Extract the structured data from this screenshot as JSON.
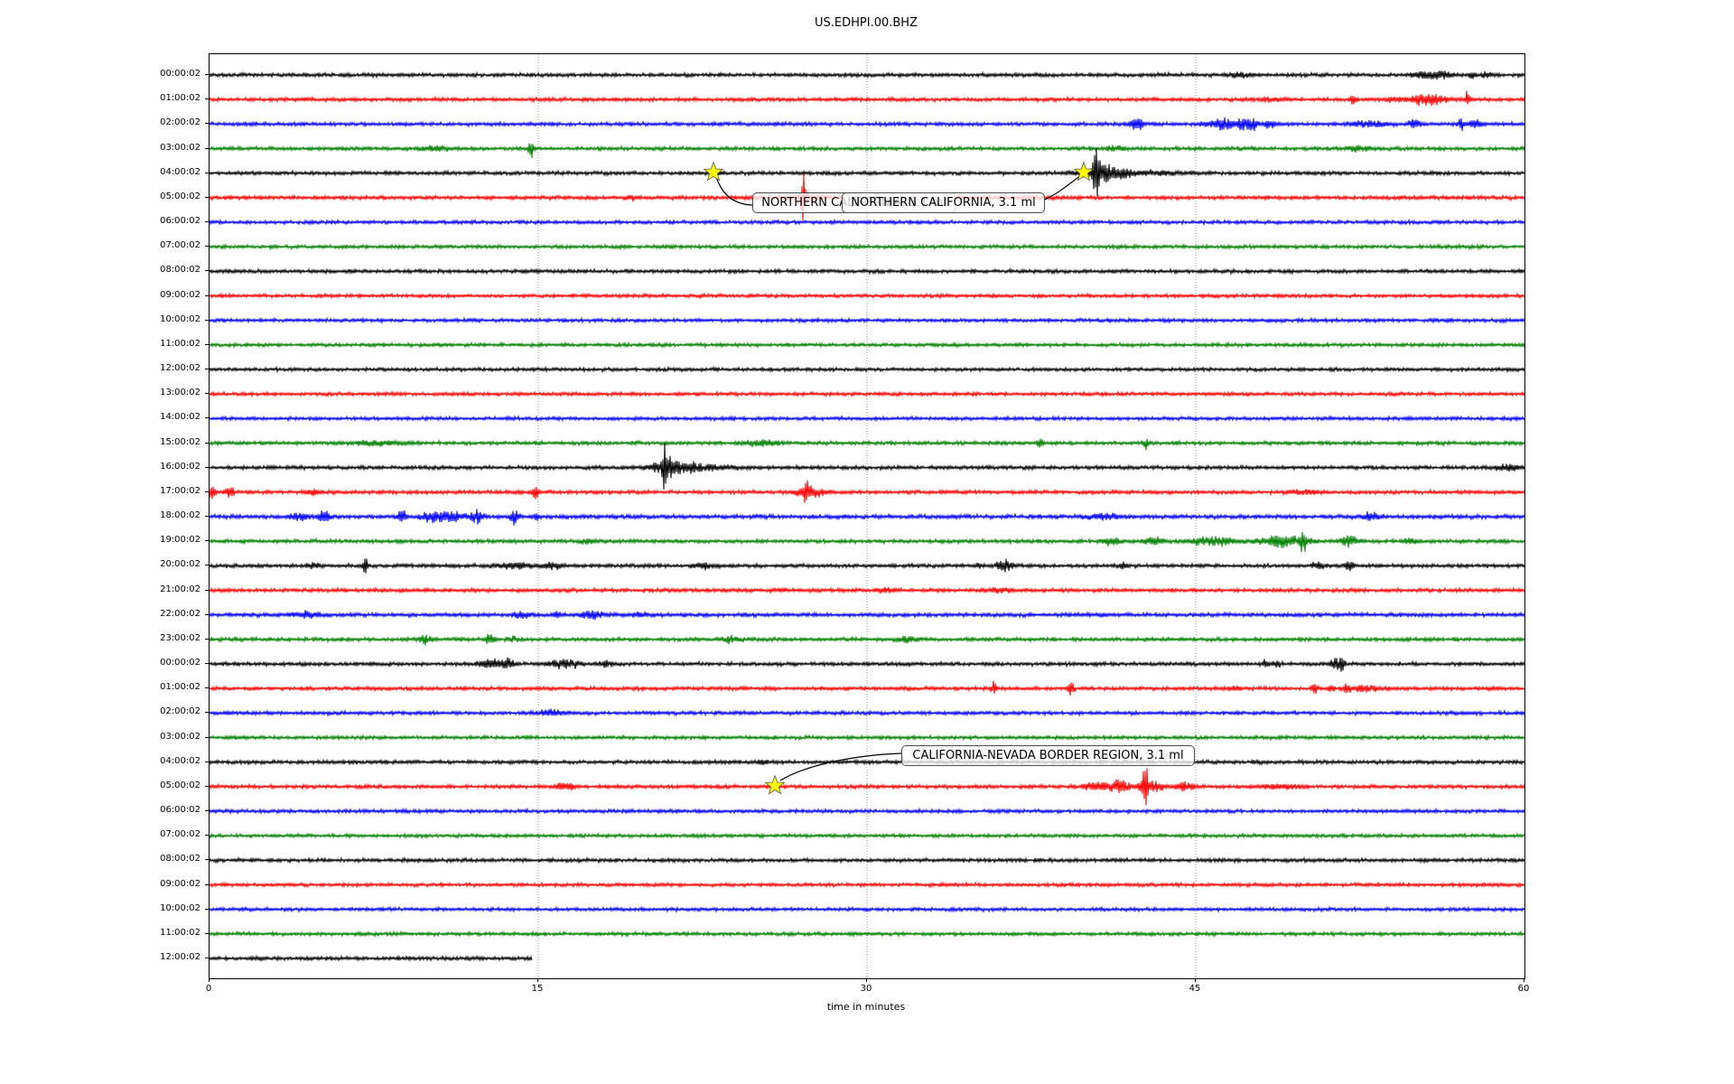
{
  "title": "US.EDHPI.00.BHZ",
  "xlabel": "time in minutes",
  "annotations": [
    {
      "text": "NORTHERN CALIFORNIA, 3.1 ml"
    },
    {
      "text": "NORTHERN CALIFORNIA, 3.1 ml"
    },
    {
      "text": "CALIFORNIA-NEVADA BORDER REGION, 3.1 ml"
    }
  ],
  "chart_data": {
    "type": "line",
    "kind": "helicorder-dayplot",
    "title": "US.EDHPI.00.BHZ",
    "xlabel": "time in minutes",
    "x_range_minutes": [
      0,
      60
    ],
    "x_ticks": [
      0,
      15,
      30,
      45,
      60
    ],
    "grid_minutes": [
      15,
      30,
      45
    ],
    "grid_style": "dotted",
    "trace_color_cycle": [
      "#000000",
      "#ff0000",
      "#0000ff",
      "#008000"
    ],
    "star_color": "#ffff00",
    "annotated_events": [
      {
        "label": "NORTHERN CALIFORNIA, 3.1 ml",
        "trace": "04:00:02",
        "minute": 23.0
      },
      {
        "label": "NORTHERN CALIFORNIA, 3.1 ml",
        "trace": "04:00:02",
        "minute": 39.9
      },
      {
        "label": "CALIFORNIA-NEVADA BORDER REGION, 3.1 ml",
        "trace": "05:00:02 (day 2)",
        "minute": 25.8
      }
    ],
    "traces": [
      {
        "label": "00:00:02",
        "color": "#000000",
        "amp": 1.8,
        "events": [
          [
            47.0,
            0.4,
            2.5
          ],
          [
            55.2,
            0.3,
            3
          ],
          [
            56.1,
            0.4,
            5
          ],
          [
            57.6,
            0.08,
            7
          ],
          [
            58.3,
            0.2,
            3
          ]
        ]
      },
      {
        "label": "01:00:02",
        "color": "#ff0000",
        "amp": 1.8,
        "events": [
          [
            48.5,
            0.3,
            2
          ],
          [
            52.2,
            0.1,
            6
          ],
          [
            53.9,
            0.2,
            3
          ],
          [
            55.6,
            0.6,
            6
          ],
          [
            57.4,
            0.08,
            10
          ]
        ]
      },
      {
        "label": "02:00:02",
        "color": "#0000ff",
        "amp": 1.8,
        "events": [
          [
            42.3,
            0.2,
            10
          ],
          [
            46.3,
            0.5,
            7
          ],
          [
            47.4,
            0.3,
            8
          ],
          [
            48.4,
            0.15,
            5
          ],
          [
            52.9,
            0.5,
            4
          ],
          [
            55.0,
            0.2,
            5
          ],
          [
            57.1,
            0.08,
            9
          ],
          [
            57.7,
            0.2,
            4
          ]
        ]
      },
      {
        "label": "03:00:02",
        "color": "#008000",
        "amp": 1.8,
        "events": [
          [
            10.4,
            0.4,
            3
          ],
          [
            14.7,
            0.1,
            9
          ],
          [
            41.4,
            0.3,
            3
          ],
          [
            52.3,
            0.4,
            3
          ]
        ]
      },
      {
        "label": "04:00:02",
        "color": "#000000",
        "amp": 1.8,
        "events": [
          [
            23.0,
            0.2,
            3
          ],
          [
            40.45,
            0.1,
            30
          ],
          [
            40.7,
            0.6,
            9
          ],
          [
            41.8,
            1.5,
            2.5
          ]
        ]
      },
      {
        "label": "05:00:02",
        "color": "#ff0000",
        "amp": 1.8,
        "events": [
          [
            19.2,
            0.15,
            3
          ],
          [
            27.1,
            0.08,
            26
          ],
          [
            27.3,
            0.5,
            4
          ]
        ]
      },
      {
        "label": "06:00:02",
        "color": "#0000ff",
        "amp": 1.7,
        "events": []
      },
      {
        "label": "07:00:02",
        "color": "#008000",
        "amp": 1.7,
        "events": []
      },
      {
        "label": "08:00:02",
        "color": "#000000",
        "amp": 1.8,
        "events": []
      },
      {
        "label": "09:00:02",
        "color": "#ff0000",
        "amp": 1.7,
        "events": []
      },
      {
        "label": "10:00:02",
        "color": "#0000ff",
        "amp": 1.7,
        "events": []
      },
      {
        "label": "11:00:02",
        "color": "#008000",
        "amp": 1.7,
        "events": []
      },
      {
        "label": "12:00:02",
        "color": "#000000",
        "amp": 1.7,
        "events": []
      },
      {
        "label": "13:00:02",
        "color": "#ff0000",
        "amp": 1.7,
        "events": []
      },
      {
        "label": "14:00:02",
        "color": "#0000ff",
        "amp": 1.7,
        "events": []
      },
      {
        "label": "15:00:02",
        "color": "#008000",
        "amp": 1.8,
        "events": [
          [
            7.6,
            0.8,
            2.5
          ],
          [
            25.3,
            0.6,
            3
          ],
          [
            37.9,
            0.1,
            6
          ],
          [
            42.7,
            0.1,
            6
          ]
        ]
      },
      {
        "label": "16:00:02",
        "color": "#000000",
        "amp": 1.8,
        "events": [
          [
            20.8,
            0.08,
            25
          ],
          [
            21.1,
            0.6,
            8
          ],
          [
            22.3,
            1.2,
            3
          ],
          [
            59.2,
            0.4,
            4
          ]
        ]
      },
      {
        "label": "17:00:02",
        "color": "#ff0000",
        "amp": 1.8,
        "events": [
          [
            0.15,
            0.1,
            9
          ],
          [
            0.9,
            0.15,
            6
          ],
          [
            4.7,
            0.2,
            3
          ],
          [
            14.9,
            0.1,
            7
          ],
          [
            27.2,
            0.08,
            11
          ],
          [
            27.4,
            0.4,
            7
          ],
          [
            50.0,
            0.5,
            2.5
          ]
        ]
      },
      {
        "label": "18:00:02",
        "color": "#0000ff",
        "amp": 2.0,
        "events": [
          [
            4.1,
            0.3,
            4
          ],
          [
            5.2,
            0.2,
            6
          ],
          [
            8.75,
            0.15,
            8
          ],
          [
            10.1,
            0.3,
            6
          ],
          [
            11.0,
            0.4,
            6
          ],
          [
            12.2,
            0.2,
            7
          ],
          [
            13.9,
            0.15,
            8
          ],
          [
            14.9,
            0.1,
            5
          ],
          [
            40.7,
            0.5,
            3
          ],
          [
            53.0,
            0.3,
            4
          ]
        ]
      },
      {
        "label": "19:00:02",
        "color": "#008000",
        "amp": 1.8,
        "events": [
          [
            17.3,
            0.2,
            3
          ],
          [
            41.1,
            0.3,
            4
          ],
          [
            43.1,
            0.3,
            5
          ],
          [
            45.3,
            0.4,
            4
          ],
          [
            46.3,
            0.4,
            4
          ],
          [
            48.9,
            0.8,
            7
          ],
          [
            49.9,
            0.08,
            13
          ],
          [
            52.0,
            0.3,
            5
          ],
          [
            54.8,
            0.2,
            4
          ]
        ]
      },
      {
        "label": "20:00:02",
        "color": "#000000",
        "amp": 1.8,
        "events": [
          [
            4.8,
            0.2,
            3
          ],
          [
            7.1,
            0.08,
            9
          ],
          [
            13.9,
            0.6,
            3
          ],
          [
            15.7,
            0.3,
            4
          ],
          [
            22.5,
            0.3,
            4
          ],
          [
            35.1,
            0.1,
            4
          ],
          [
            36.3,
            0.25,
            8
          ],
          [
            41.7,
            0.15,
            4
          ],
          [
            50.6,
            0.2,
            4
          ],
          [
            52.0,
            0.15,
            6
          ]
        ]
      },
      {
        "label": "21:00:02",
        "color": "#ff0000",
        "amp": 1.8,
        "events": [
          [
            30.9,
            0.3,
            2.5
          ],
          [
            36.0,
            0.5,
            2
          ]
        ]
      },
      {
        "label": "22:00:02",
        "color": "#0000ff",
        "amp": 1.9,
        "events": [
          [
            4.5,
            0.4,
            4
          ],
          [
            14.3,
            0.3,
            3
          ],
          [
            15.9,
            0.08,
            5
          ],
          [
            17.5,
            0.4,
            5
          ],
          [
            19.7,
            0.2,
            3
          ]
        ]
      },
      {
        "label": "23:00:02",
        "color": "#008000",
        "amp": 1.8,
        "events": [
          [
            9.8,
            0.2,
            5
          ],
          [
            12.8,
            0.15,
            7
          ],
          [
            13.8,
            0.2,
            3
          ],
          [
            23.8,
            0.3,
            3
          ],
          [
            31.8,
            0.3,
            3
          ]
        ]
      },
      {
        "label": "00:00:02",
        "color": "#000000",
        "amp": 1.8,
        "events": [
          [
            12.75,
            0.3,
            6
          ],
          [
            13.55,
            0.25,
            6
          ],
          [
            16.2,
            0.4,
            6
          ],
          [
            18.1,
            0.2,
            4
          ],
          [
            48.2,
            0.1,
            5
          ],
          [
            48.7,
            0.1,
            4
          ],
          [
            51.4,
            0.15,
            8
          ],
          [
            51.7,
            0.08,
            9
          ]
        ]
      },
      {
        "label": "01:00:02",
        "color": "#ff0000",
        "amp": 1.8,
        "events": [
          [
            35.8,
            0.1,
            8
          ],
          [
            39.3,
            0.08,
            12
          ],
          [
            46.8,
            0.2,
            3
          ],
          [
            50.4,
            0.12,
            6
          ],
          [
            51.2,
            0.1,
            5
          ],
          [
            51.9,
            0.1,
            6
          ],
          [
            52.8,
            0.5,
            3
          ]
        ]
      },
      {
        "label": "02:00:02",
        "color": "#0000ff",
        "amp": 1.8,
        "events": [
          [
            15.6,
            0.4,
            4
          ]
        ]
      },
      {
        "label": "03:00:02",
        "color": "#008000",
        "amp": 1.7,
        "events": []
      },
      {
        "label": "04:00:02",
        "color": "#000000",
        "amp": 1.8,
        "events": [
          [
            25.2,
            0.15,
            3
          ]
        ]
      },
      {
        "label": "05:00:02",
        "color": "#ff0000",
        "amp": 1.8,
        "events": [
          [
            16.2,
            0.3,
            4
          ],
          [
            40.5,
            0.4,
            5
          ],
          [
            41.5,
            0.3,
            7
          ],
          [
            42.7,
            0.08,
            27
          ],
          [
            42.9,
            0.4,
            6
          ],
          [
            44.5,
            0.25,
            6
          ],
          [
            48.8,
            0.6,
            2.5
          ]
        ]
      },
      {
        "label": "06:00:02",
        "color": "#0000ff",
        "amp": 1.7,
        "events": []
      },
      {
        "label": "07:00:02",
        "color": "#008000",
        "amp": 1.7,
        "events": []
      },
      {
        "label": "08:00:02",
        "color": "#000000",
        "amp": 1.8,
        "events": []
      },
      {
        "label": "09:00:02",
        "color": "#ff0000",
        "amp": 1.7,
        "events": []
      },
      {
        "label": "10:00:02",
        "color": "#0000ff",
        "amp": 1.7,
        "events": []
      },
      {
        "label": "11:00:02",
        "color": "#008000",
        "amp": 1.7,
        "events": []
      },
      {
        "label": "12:00:02",
        "color": "#000000",
        "amp": 1.8,
        "end": 14.72,
        "events": []
      }
    ]
  }
}
